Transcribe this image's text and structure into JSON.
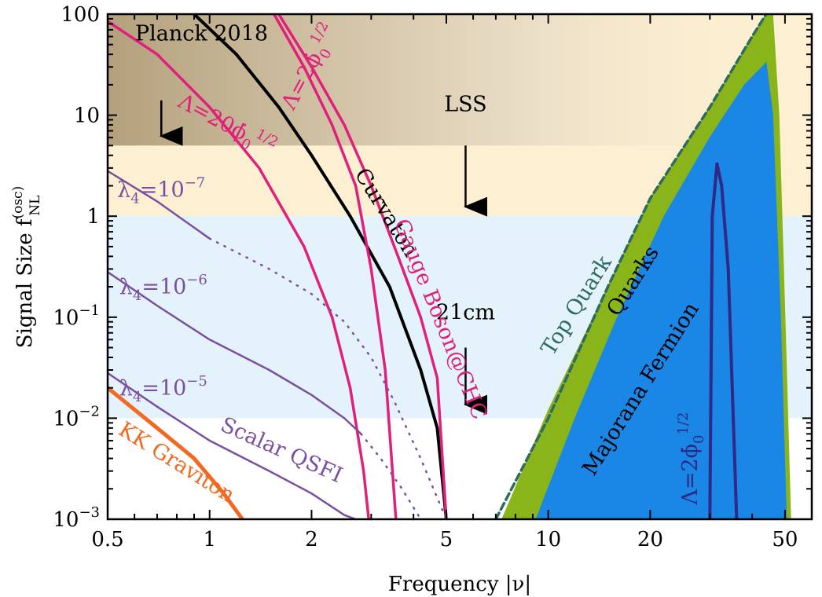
{
  "chart_data": {
    "type": "line",
    "xlabel": "Frequency |ν|",
    "ylabel": "Signal Size f",
    "ylabel_sup": "(osc)",
    "ylabel_sub": "NL",
    "xscale": "log",
    "yscale": "log",
    "xlim": [
      0.5,
      60
    ],
    "ylim": [
      0.001,
      100
    ],
    "x_ticks": [
      {
        "v": 0.5,
        "label": "0.5"
      },
      {
        "v": 1,
        "label": "1"
      },
      {
        "v": 2,
        "label": "2"
      },
      {
        "v": 5,
        "label": "5"
      },
      {
        "v": 10,
        "label": "10"
      },
      {
        "v": 20,
        "label": "20"
      },
      {
        "v": 50,
        "label": "50"
      }
    ],
    "y_ticks": [
      {
        "v": 100,
        "label": "100",
        "exp": ""
      },
      {
        "v": 10,
        "label": "10",
        "exp": ""
      },
      {
        "v": 1,
        "label": "1",
        "exp": ""
      },
      {
        "v": 0.1,
        "label": "10",
        "exp": "−1"
      },
      {
        "v": 0.01,
        "label": "10",
        "exp": "−2"
      },
      {
        "v": 0.001,
        "label": "10",
        "exp": "−3"
      }
    ],
    "bands": [
      {
        "name": "Planck 2018",
        "y0": 5,
        "y1": 100,
        "color": "#bba784"
      },
      {
        "name": "LSS",
        "y0": 1,
        "y1": 100,
        "color": "#fdf0d2"
      },
      {
        "name": "21cm",
        "y0": 0.01,
        "y1": 1,
        "color": "#e4f3fb"
      }
    ],
    "arrows": [
      {
        "label": "Planck 2018",
        "x": 0.72,
        "y_from": 14,
        "y_to": 5,
        "text_x": 0.5,
        "text_y": 55
      },
      {
        "label": "LSS",
        "x": 5.7,
        "y_from": 5,
        "y_to": 1,
        "text_x": 5.7,
        "text_y": 11
      },
      {
        "label": "21cm",
        "x": 5.7,
        "y_from": 0.05,
        "y_to": 0.011,
        "text_x": 5.7,
        "text_y": 0.095
      }
    ],
    "series": [
      {
        "name": "Curvaton",
        "color": "#000000",
        "style": "solid",
        "width": 4,
        "points": [
          [
            0.9,
            100
          ],
          [
            1.2,
            40
          ],
          [
            1.6,
            12
          ],
          [
            2.0,
            4
          ],
          [
            2.6,
            1
          ],
          [
            3.4,
            0.2
          ],
          [
            4.2,
            0.03
          ],
          [
            4.7,
            0.008
          ],
          [
            5.0,
            0.001
          ]
        ]
      },
      {
        "name": "Gauge Boson@CHC",
        "color": "#e0207a",
        "style": "solid",
        "width": 3.5,
        "points": [
          [
            1.6,
            100
          ],
          [
            2.0,
            30
          ],
          [
            2.5,
            8
          ],
          [
            3.0,
            2
          ],
          [
            3.6,
            0.4
          ],
          [
            4.2,
            0.1
          ],
          [
            4.7,
            0.025
          ],
          [
            5.0,
            0.001
          ]
        ]
      },
      {
        "name": "Λ=2ϕ̇0^1/2",
        "color": "#e0207a",
        "style": "solid",
        "width": 3.5,
        "points": [
          [
            1.55,
            100
          ],
          [
            1.9,
            30
          ],
          [
            2.3,
            8
          ],
          [
            2.7,
            2
          ],
          [
            3.0,
            0.3
          ],
          [
            3.3,
            0.03
          ],
          [
            3.55,
            0.001
          ]
        ]
      },
      {
        "name": "Λ=20ϕ̇0^1/2",
        "color": "#e0207a",
        "style": "solid",
        "width": 3.5,
        "points": [
          [
            0.5,
            85
          ],
          [
            0.7,
            40
          ],
          [
            1.0,
            12
          ],
          [
            1.4,
            3
          ],
          [
            1.9,
            0.5
          ],
          [
            2.3,
            0.1
          ],
          [
            2.6,
            0.02
          ],
          [
            2.85,
            0.003
          ],
          [
            2.95,
            0.001
          ]
        ]
      },
      {
        "name": "λ4=10^−7",
        "color": "#7b4fa0",
        "style": "solid",
        "width": 2.5,
        "points": [
          [
            0.5,
            2.8
          ],
          [
            0.7,
            1.4
          ],
          [
            1.0,
            0.6
          ]
        ]
      },
      {
        "name": "λ4=10^−7 (dotted)",
        "color": "#7b4fa0",
        "style": "dotted",
        "width": 2.5,
        "points": [
          [
            1.0,
            0.6
          ],
          [
            1.5,
            0.3
          ],
          [
            2.0,
            0.17
          ],
          [
            2.5,
            0.09
          ],
          [
            3.0,
            0.04
          ],
          [
            3.5,
            0.015
          ],
          [
            4.2,
            0.004
          ],
          [
            5.0,
            0.001
          ]
        ]
      },
      {
        "name": "λ4=10^−6",
        "color": "#7b4fa0",
        "style": "solid",
        "width": 2.5,
        "points": [
          [
            0.5,
            0.28
          ],
          [
            0.7,
            0.13
          ],
          [
            1.0,
            0.06
          ],
          [
            1.5,
            0.03
          ],
          [
            2.0,
            0.017
          ],
          [
            2.5,
            0.01
          ],
          [
            2.8,
            0.007
          ]
        ]
      },
      {
        "name": "λ4=10^−6 (dotted)",
        "color": "#7b4fa0",
        "style": "dotted",
        "width": 2.5,
        "points": [
          [
            2.8,
            0.007
          ],
          [
            3.2,
            0.004
          ],
          [
            3.7,
            0.002
          ],
          [
            4.2,
            0.001
          ]
        ]
      },
      {
        "name": "Scalar QSFI",
        "color": "#7b4fa0",
        "style": "solid",
        "width": 2.5,
        "points": [
          [
            0.5,
            0.028
          ],
          [
            0.7,
            0.013
          ],
          [
            1.0,
            0.006
          ],
          [
            1.5,
            0.003
          ],
          [
            2.0,
            0.0018
          ],
          [
            2.5,
            0.0011
          ],
          [
            2.7,
            0.001
          ]
        ]
      },
      {
        "name": "KK Graviton",
        "color": "#f26a21",
        "style": "solid",
        "width": 5,
        "points": [
          [
            0.5,
            0.02
          ],
          [
            0.7,
            0.008
          ],
          [
            0.9,
            0.004
          ],
          [
            1.1,
            0.0018
          ],
          [
            1.25,
            0.001
          ]
        ]
      },
      {
        "name": "Top Quark",
        "color": "#2f6b5e",
        "style": "dashed",
        "width": 3.5,
        "points": [
          [
            7.0,
            0.001
          ],
          [
            10,
            0.01
          ],
          [
            15,
            0.2
          ],
          [
            20,
            1.5
          ],
          [
            30,
            12
          ],
          [
            40,
            60
          ],
          [
            44,
            100
          ]
        ]
      },
      {
        "name": "Λ=2ϕ̇0^1/2 (Majorana)",
        "color": "#2e2a85",
        "style": "solid",
        "width": 4,
        "points": [
          [
            30,
            0.001
          ],
          [
            30.5,
            1
          ],
          [
            31.5,
            3.3
          ],
          [
            32.5,
            2
          ],
          [
            34,
            0.3
          ],
          [
            36,
            0.001
          ]
        ]
      }
    ],
    "areas": [
      {
        "name": "Quarks",
        "color": "#8ab51a",
        "points": [
          [
            7.3,
            0.001
          ],
          [
            10,
            0.012
          ],
          [
            15,
            0.2
          ],
          [
            20,
            1.5
          ],
          [
            30,
            12
          ],
          [
            40,
            60
          ],
          [
            44,
            100
          ],
          [
            46,
            100
          ],
          [
            48,
            10
          ],
          [
            50,
            0.1
          ],
          [
            52,
            0.001
          ]
        ]
      },
      {
        "name": "Majorana Fermion",
        "color": "#1a86e6",
        "points": [
          [
            9.2,
            0.001
          ],
          [
            12,
            0.01
          ],
          [
            16,
            0.1
          ],
          [
            22,
            1
          ],
          [
            30,
            6
          ],
          [
            38,
            20
          ],
          [
            44,
            33
          ],
          [
            46,
            10
          ],
          [
            48.5,
            0.1
          ],
          [
            50.5,
            0.001
          ]
        ]
      }
    ],
    "annotations": [
      {
        "text": "Curvaton",
        "x": 3.2,
        "y": 1.0,
        "rotate": 58,
        "color": "#000000"
      },
      {
        "text": "Gauge Boson@CHC",
        "x": 4.6,
        "y": 0.09,
        "rotate": 68,
        "color": "#e0207a"
      },
      {
        "text": "Λ=2ϕ̇",
        "sub": "0",
        "sup": "1/2",
        "x": 2.05,
        "y": 28,
        "rotate": -62,
        "color": "#e0207a"
      },
      {
        "text": "Λ=20ϕ̇",
        "sub": "0",
        "sup": "1/2",
        "x": 1.1,
        "y": 7,
        "rotate": 28,
        "color": "#e0207a"
      },
      {
        "text": "λ",
        "sub": "4",
        "tail": "=10",
        "sup": "−7",
        "x": 0.72,
        "y": 1.55,
        "rotate": 0,
        "color": "#7b4fa0"
      },
      {
        "text": "λ",
        "sub": "4",
        "tail": "=10",
        "sup": "−6",
        "x": 0.73,
        "y": 0.17,
        "rotate": 0,
        "color": "#7b4fa0"
      },
      {
        "text": "λ",
        "sub": "4",
        "tail": "=10",
        "sup": "−5",
        "x": 0.73,
        "y": 0.017,
        "rotate": 0,
        "color": "#7b4fa0"
      },
      {
        "text": "Scalar QSFI",
        "x": 1.6,
        "y": 0.0042,
        "rotate": 24,
        "color": "#7b4fa0"
      },
      {
        "text": "KK Graviton",
        "x": 0.78,
        "y": 0.0032,
        "rotate": 32,
        "color": "#f26a21"
      },
      {
        "text": "Top Quark",
        "x": 12.6,
        "y": 0.12,
        "rotate": -58,
        "color": "#2f6b5e"
      },
      {
        "text": "Quarks",
        "x": 18.5,
        "y": 0.21,
        "rotate": -58,
        "color": "#000000"
      },
      {
        "text": "Majorana Fermion",
        "x": 19.5,
        "y": 0.018,
        "rotate": -58,
        "color": "#000000"
      },
      {
        "text": "Λ=2ϕ̇",
        "sub": "0",
        "sup": "1/2",
        "x": 27.5,
        "y": 0.004,
        "rotate": -90,
        "color": "#2e2a85"
      }
    ]
  }
}
